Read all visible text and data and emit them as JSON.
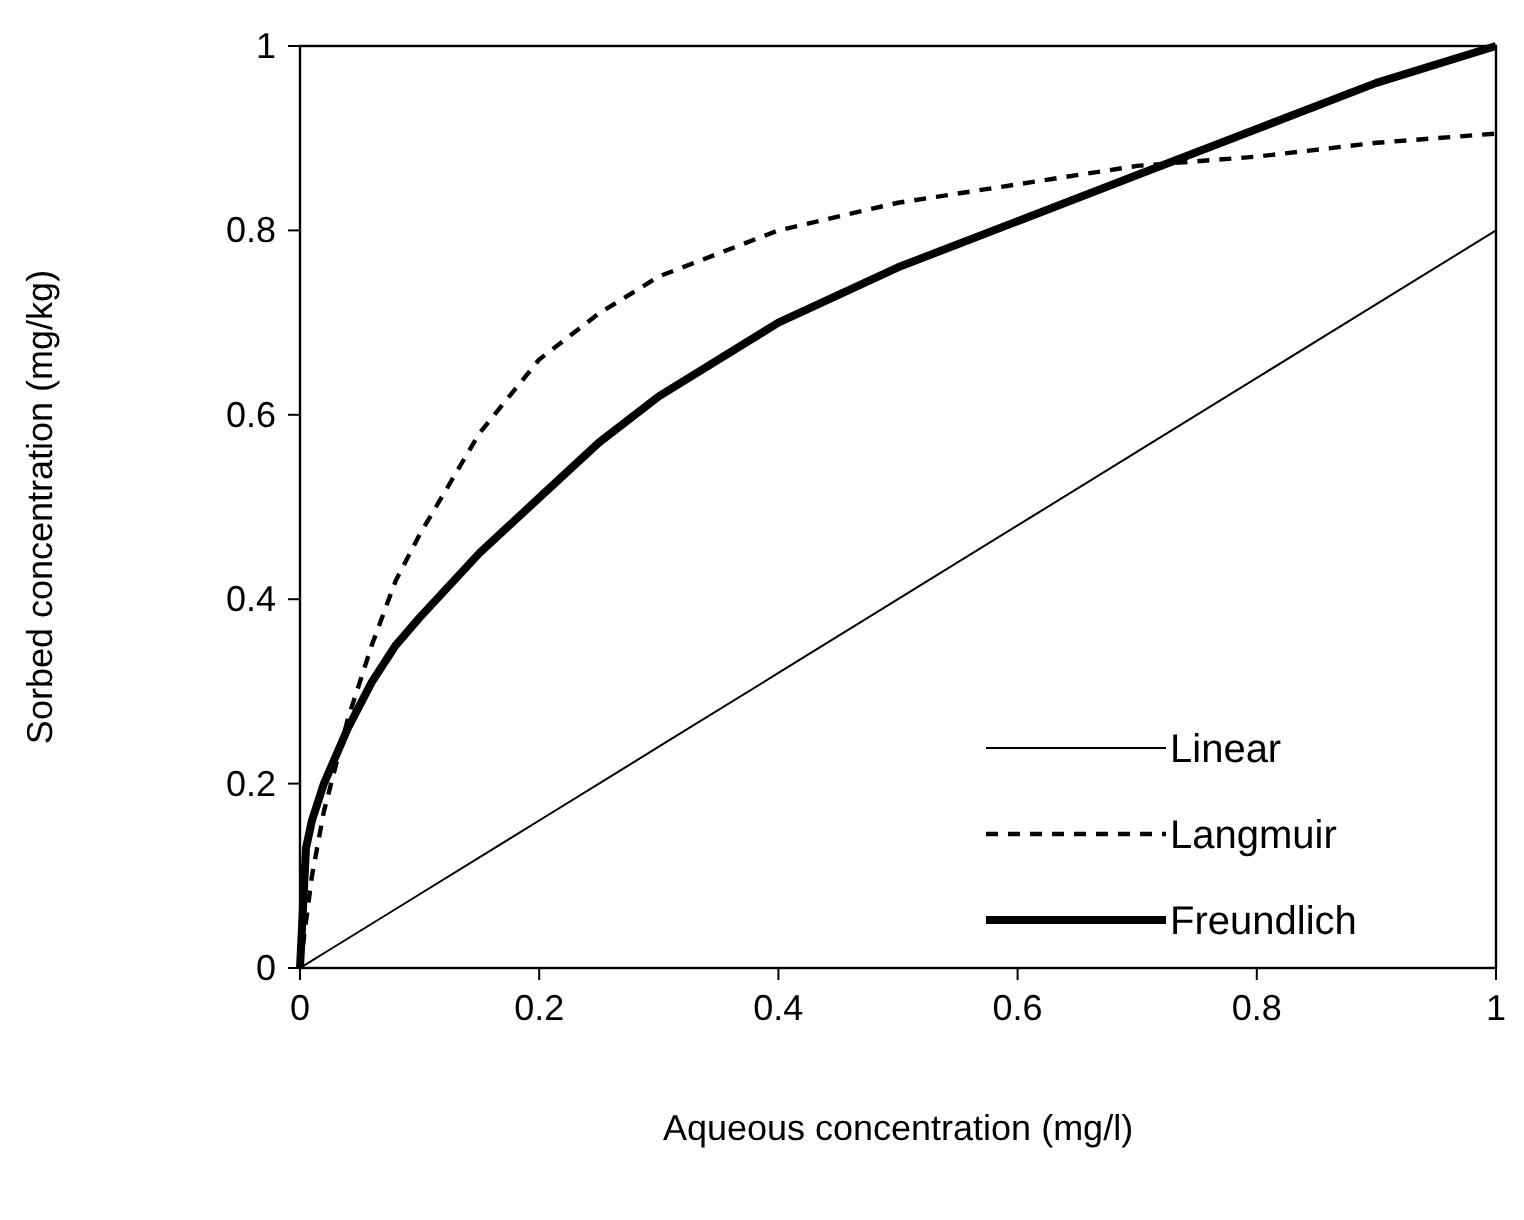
{
  "chart_data": {
    "type": "line",
    "xlabel": "Aqueous concentration (mg/l)",
    "ylabel": "Sorbed concentration (mg/kg)",
    "x": [
      0,
      0.005,
      0.01,
      0.02,
      0.04,
      0.06,
      0.08,
      0.1,
      0.15,
      0.2,
      0.25,
      0.3,
      0.4,
      0.5,
      0.6,
      0.7,
      0.8,
      0.9,
      1
    ],
    "series": [
      {
        "name": "Linear",
        "color": "#000000",
        "line_style": "solid",
        "values": [
          0,
          0.004,
          0.008,
          0.016,
          0.032,
          0.048,
          0.064,
          0.08,
          0.12,
          0.16,
          0.2,
          0.24,
          0.32,
          0.4,
          0.48,
          0.56,
          0.64,
          0.72,
          0.8
        ]
      },
      {
        "name": "Langmuir",
        "color": "#000000",
        "line_style": "dashed",
        "values": [
          0,
          0.05,
          0.1,
          0.17,
          0.27,
          0.35,
          0.42,
          0.47,
          0.58,
          0.66,
          0.71,
          0.75,
          0.8,
          0.83,
          0.85,
          0.87,
          0.88,
          0.895,
          0.905
        ]
      },
      {
        "name": "Freundlich",
        "color": "#000000",
        "line_style": "solid",
        "values": [
          0,
          0.13,
          0.16,
          0.2,
          0.26,
          0.31,
          0.35,
          0.38,
          0.45,
          0.51,
          0.57,
          0.62,
          0.7,
          0.76,
          0.81,
          0.86,
          0.91,
          0.96,
          1
        ]
      }
    ],
    "xlim": [
      0,
      1
    ],
    "ylim": [
      0,
      1
    ],
    "xticks": [
      0,
      0.2,
      0.4,
      0.6,
      0.8,
      1
    ],
    "yticks": [
      0,
      0.2,
      0.4,
      0.6,
      0.8,
      1
    ],
    "grid": false,
    "legend": "bottom right",
    "marker": "none"
  }
}
